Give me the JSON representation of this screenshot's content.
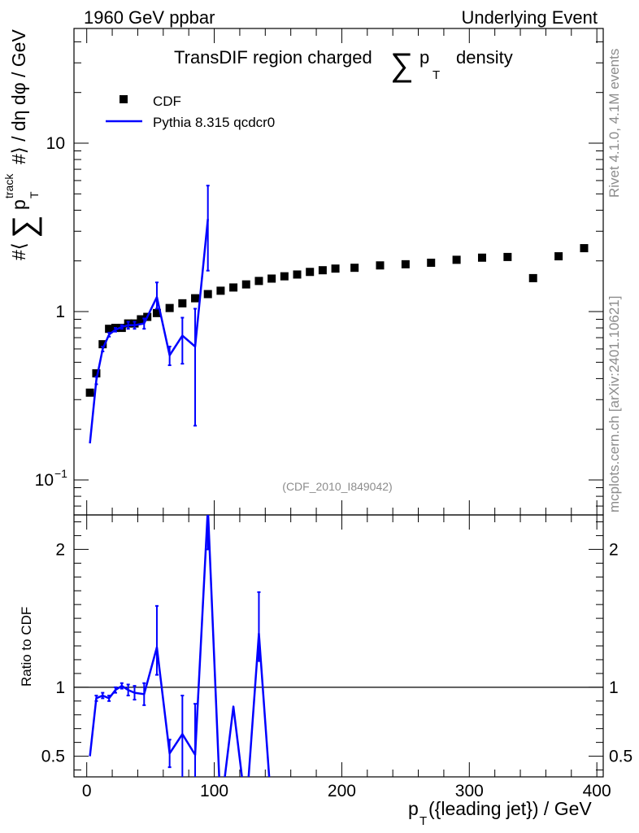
{
  "header": {
    "left": "1960 GeV ppbar",
    "right": "Underlying Event"
  },
  "side_labels": {
    "rivet": "Rivet 4.1.0,  4.1M events",
    "mcplots": "mcplots.cern.ch [arXiv:2401.10621]"
  },
  "chart_data": [
    {
      "type": "scatter",
      "panel": "main",
      "title": "TransDIF region charged ∑ pT density",
      "title_parts": {
        "pre": "TransDIF region charged",
        "sum": "∑",
        "p": "p",
        "sub": "T",
        "post": "density"
      },
      "ylabel": "#⟨ ∑ pTtrack #⟩ / dη dφ / GeV",
      "ylabel_parts": {
        "hash1": "#⟨",
        "sum": "∑",
        "p": "p",
        "sub": "T",
        "sup": "track",
        "rest": "#⟩ / dη dφ / GeV"
      },
      "yscale": "log",
      "ylim": [
        0.062,
        48
      ],
      "xlim": [
        -10,
        405
      ],
      "yticks": [
        {
          "value": 0.1,
          "label": "10",
          "exp": "−1"
        },
        {
          "value": 1,
          "label": "1",
          "exp": ""
        },
        {
          "value": 10,
          "label": "10",
          "exp": ""
        }
      ],
      "watermark": "(CDF_2010_I849042)",
      "legend": [
        {
          "name": "CDF",
          "marker": "square"
        },
        {
          "name": "Pythia 8.315 qcdcr0",
          "marker": "line"
        }
      ],
      "series": [
        {
          "name": "CDF",
          "color": "#000000",
          "x": [
            2.5,
            7.5,
            12.5,
            17.5,
            22.5,
            27.5,
            32.5,
            37.5,
            42.5,
            47.5,
            55,
            65,
            75,
            85,
            95,
            105,
            115,
            125,
            135,
            145,
            155,
            165,
            175,
            185,
            195,
            210,
            230,
            250,
            270,
            290,
            310,
            330,
            350,
            370,
            390
          ],
          "y": [
            0.33,
            0.43,
            0.64,
            0.79,
            0.8,
            0.8,
            0.85,
            0.85,
            0.9,
            0.93,
            0.98,
            1.05,
            1.12,
            1.2,
            1.27,
            1.33,
            1.39,
            1.45,
            1.52,
            1.57,
            1.62,
            1.66,
            1.72,
            1.76,
            1.8,
            1.82,
            1.88,
            1.91,
            1.95,
            2.03,
            2.09,
            2.11,
            1.58,
            2.13,
            2.38
          ]
        },
        {
          "name": "Pythia 8.315 qcdcr0",
          "color": "#0000ff",
          "x": [
            2.5,
            7.5,
            12.5,
            17.5,
            22.5,
            27.5,
            32.5,
            37.5,
            45,
            55,
            65,
            75,
            85,
            95
          ],
          "y": [
            0.165,
            0.39,
            0.6,
            0.73,
            0.78,
            0.81,
            0.83,
            0.83,
            0.85,
            1.22,
            0.55,
            0.72,
            0.62,
            3.55
          ],
          "err_low": [
            0,
            0.02,
            0.02,
            0.02,
            0.02,
            0.02,
            0.04,
            0.04,
            0.06,
            0.18,
            0.07,
            0.23,
            0.41,
            1.8
          ],
          "err_high": [
            0,
            0.02,
            0.02,
            0.02,
            0.02,
            0.02,
            0.04,
            0.04,
            0.06,
            0.27,
            0.07,
            0.2,
            0.42,
            2.05
          ]
        }
      ]
    },
    {
      "type": "line",
      "panel": "ratio",
      "ylabel": "Ratio to CDF",
      "xlabel": "pT({leading jet}) / GeV",
      "xlabel_parts": {
        "p": "p",
        "sub": "T",
        "rest": "({leading jet}) / GeV"
      },
      "xlim": [
        -10,
        405
      ],
      "ylim": [
        0.35,
        2.25
      ],
      "xticks": [
        0,
        100,
        200,
        300,
        400
      ],
      "xtick_labels": [
        "0",
        "100",
        "200",
        "300",
        "400"
      ],
      "yticks": [
        0.5,
        1,
        2
      ],
      "ytick_labels": [
        "0.5",
        "1",
        "2"
      ],
      "reference": 1,
      "series": [
        {
          "name": "Pythia 8.315 qcdcr0",
          "color": "#0000ff",
          "x": [
            2.5,
            7.5,
            12.5,
            17.5,
            22.5,
            27.5,
            32.5,
            37.5,
            45,
            55,
            65,
            75,
            85,
            95,
            105,
            115,
            125,
            135,
            145
          ],
          "y": [
            0.5,
            0.92,
            0.94,
            0.92,
            0.98,
            1.01,
            0.98,
            0.96,
            0.95,
            1.29,
            0.52,
            0.66,
            0.51,
            2.3,
            0.1,
            0.86,
            0.1,
            1.39,
            0.1
          ],
          "err_low": [
            0,
            0.02,
            0.02,
            0.02,
            0.02,
            0.02,
            0.04,
            0.05,
            0.08,
            0.2,
            0.1,
            0.32,
            0.38,
            0.3,
            0,
            0,
            0,
            0.2,
            0
          ],
          "err_high": [
            0,
            0.02,
            0.02,
            0.02,
            0.02,
            0.02,
            0.04,
            0.05,
            0.08,
            0.3,
            0.1,
            0.28,
            0.37,
            0.3,
            0,
            0,
            0,
            0.3,
            0
          ]
        }
      ]
    }
  ]
}
